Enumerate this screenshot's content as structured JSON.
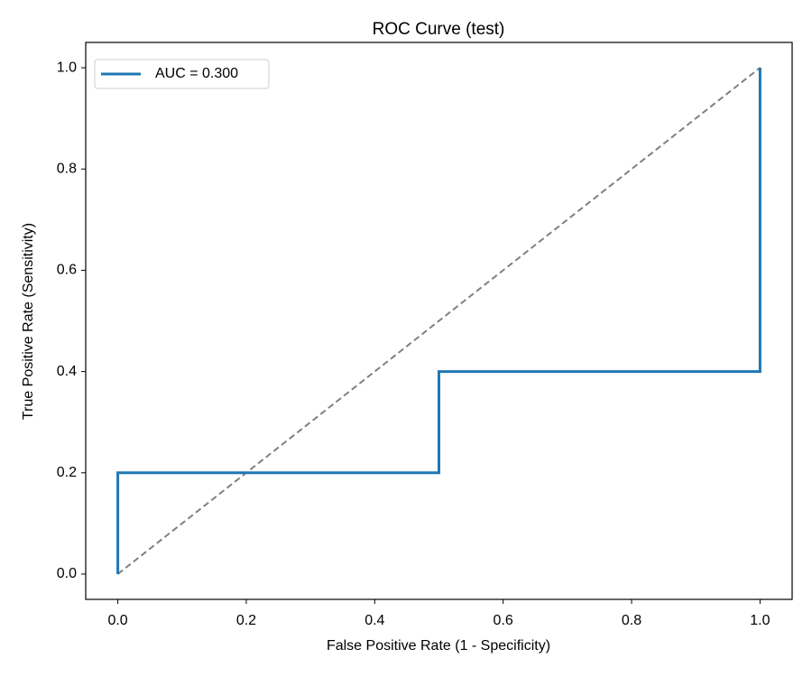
{
  "chart_data": {
    "type": "line",
    "title": "ROC Curve (test)",
    "xlabel": "False Positive Rate (1 - Specificity)",
    "ylabel": "True Positive Rate (Sensitivity)",
    "xlim": [
      -0.05,
      1.05
    ],
    "ylim": [
      -0.05,
      1.05
    ],
    "xticks": [
      {
        "value": 0,
        "label": "0.0"
      },
      0.2,
      0.4,
      0.6,
      0.8,
      {
        "value": 1,
        "label": "1.0"
      }
    ],
    "yticks": [
      {
        "value": 0,
        "label": "0.0"
      },
      0.2,
      0.4,
      0.6,
      0.8,
      {
        "value": 1,
        "label": "1.0"
      }
    ],
    "grid": false,
    "legend": "upper left",
    "series": [
      {
        "name": "AUC = 0.300",
        "color": "#1f77b4",
        "linestyle": "solid",
        "x": [
          0,
          0,
          0.5,
          0.5,
          1,
          1
        ],
        "values": [
          0,
          0.2,
          0.2,
          0.4,
          0.4,
          1
        ]
      },
      {
        "color": "#808080",
        "linestyle": "dashed",
        "x": [
          0,
          1
        ],
        "values": [
          0,
          1
        ]
      }
    ]
  }
}
